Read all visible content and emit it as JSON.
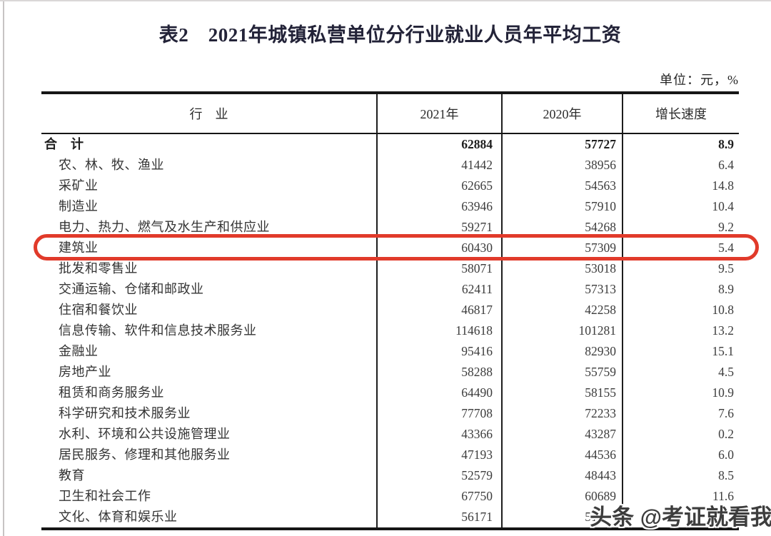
{
  "title": "表2　2021年城镇私营单位分行业就业人员年平均工资",
  "unit_label": "单位：元，%",
  "watermark": "头条 @考证就看我",
  "highlight": {
    "highlighted_row": "建筑业",
    "color": "#e13a2a",
    "shape": "red-rounded-outline"
  },
  "table": {
    "headers": [
      "行　业",
      "2021年",
      "2020年",
      "增长速度"
    ],
    "rows": [
      {
        "industry": "合　计",
        "v2021": "62884",
        "v2020": "57727",
        "growth": "8.9",
        "bold": true,
        "indent": false
      },
      {
        "industry": "农、林、牧、渔业",
        "v2021": "41442",
        "v2020": "38956",
        "growth": "6.4"
      },
      {
        "industry": "采矿业",
        "v2021": "62665",
        "v2020": "54563",
        "growth": "14.8"
      },
      {
        "industry": "制造业",
        "v2021": "63946",
        "v2020": "57910",
        "growth": "10.4"
      },
      {
        "industry": "电力、热力、燃气及水生产和供应业",
        "v2021": "59271",
        "v2020": "54268",
        "growth": "9.2"
      },
      {
        "industry": "建筑业",
        "v2021": "60430",
        "v2020": "57309",
        "growth": "5.4",
        "highlighted": true
      },
      {
        "industry": "批发和零售业",
        "v2021": "58071",
        "v2020": "53018",
        "growth": "9.5"
      },
      {
        "industry": "交通运输、仓储和邮政业",
        "v2021": "62411",
        "v2020": "57313",
        "growth": "8.9"
      },
      {
        "industry": "住宿和餐饮业",
        "v2021": "46817",
        "v2020": "42258",
        "growth": "10.8"
      },
      {
        "industry": "信息传输、软件和信息技术服务业",
        "v2021": "114618",
        "v2020": "101281",
        "growth": "13.2"
      },
      {
        "industry": "金融业",
        "v2021": "95416",
        "v2020": "82930",
        "growth": "15.1"
      },
      {
        "industry": "房地产业",
        "v2021": "58288",
        "v2020": "55759",
        "growth": "4.5"
      },
      {
        "industry": "租赁和商务服务业",
        "v2021": "64490",
        "v2020": "58155",
        "growth": "10.9"
      },
      {
        "industry": "科学研究和技术服务业",
        "v2021": "77708",
        "v2020": "72233",
        "growth": "7.6"
      },
      {
        "industry": "水利、环境和公共设施管理业",
        "v2021": "43366",
        "v2020": "43287",
        "growth": "0.2"
      },
      {
        "industry": "居民服务、修理和其他服务业",
        "v2021": "47193",
        "v2020": "44536",
        "growth": "6.0"
      },
      {
        "industry": "教育",
        "v2021": "52579",
        "v2020": "48443",
        "growth": "8.5"
      },
      {
        "industry": "卫生和社会工作",
        "v2021": "67750",
        "v2020": "60689",
        "growth": "11.6"
      },
      {
        "industry": "文化、体育和娱乐业",
        "v2021": "56171",
        "v2020": "51",
        "v2020_obscured": true,
        "growth": "",
        "growth_obscured": true
      }
    ]
  }
}
